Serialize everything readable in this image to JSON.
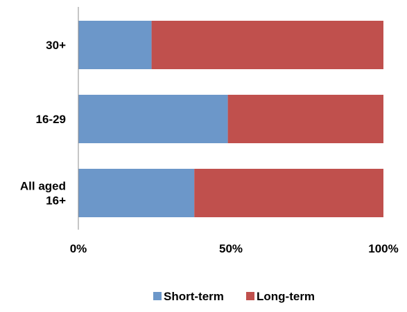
{
  "chart_data": {
    "type": "bar",
    "orientation": "horizontal",
    "stacked": true,
    "percent_stacked": true,
    "title": "",
    "xlabel": "",
    "ylabel": "",
    "categories": [
      [
        "30+"
      ],
      [
        "16-29"
      ],
      [
        "All aged",
        "16+"
      ]
    ],
    "series": [
      {
        "name": "Short-term",
        "color": "#6C97C9",
        "values": [
          24,
          49,
          38
        ]
      },
      {
        "name": "Long-term",
        "color": "#C0504D",
        "values": [
          76,
          51,
          62
        ]
      }
    ],
    "x_ticks": [
      "0%",
      "50%",
      "100%"
    ],
    "xlim": [
      0,
      100
    ],
    "grid": false,
    "legend_position": "bottom"
  }
}
